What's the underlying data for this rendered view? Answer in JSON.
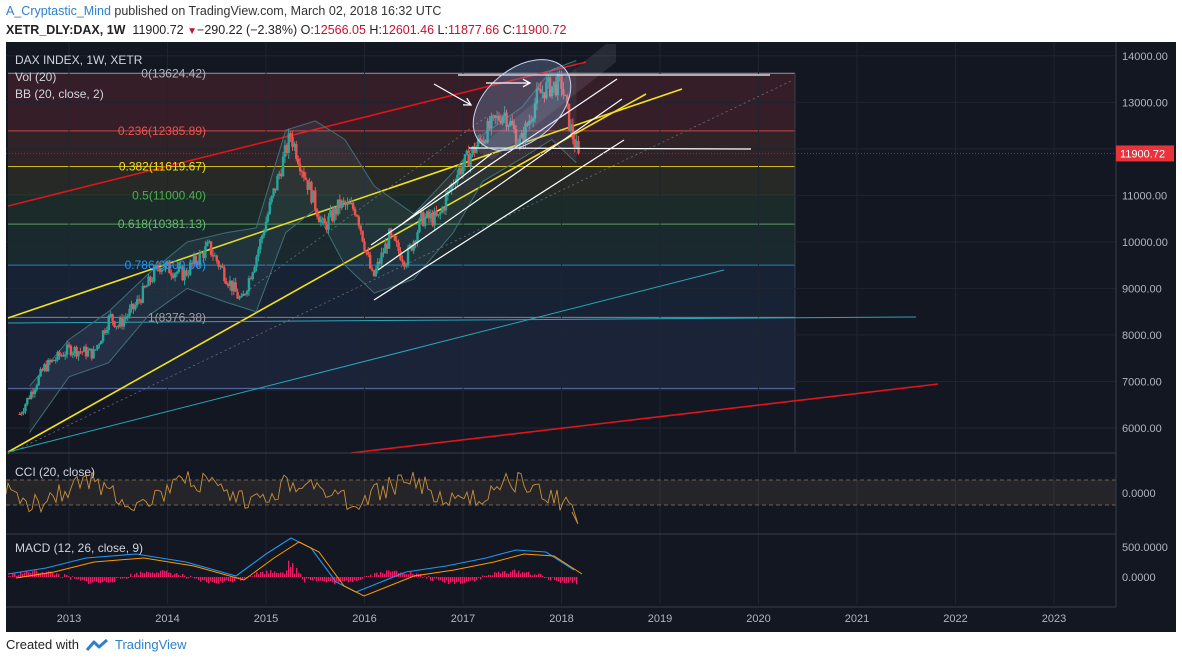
{
  "header": {
    "author": "A_Cryptastic_Mind",
    "published": "published on TradingView.com, March 02, 2018 16:32 UTC",
    "symbol": "XETR_DLY:DAX, 1W",
    "last": "11900.72",
    "change": "−290.22 (−2.38%)",
    "o_label": "O:",
    "o_value": "12566.05",
    "h_label": "H:",
    "h_value": "12601.46",
    "l_label": "L:",
    "l_value": "11877.66",
    "c_label": "C:",
    "c_value": "11900.72"
  },
  "footer": {
    "created_with": "Created with",
    "brand": "TradingView"
  },
  "colors": {
    "background": "#131722",
    "up": "#26a69a",
    "down": "#ef5350",
    "red_line": "#e0151a",
    "yellow_line": "#f2e21b",
    "cyan_line": "#27a7b5",
    "white_line": "#ffffff",
    "macd_hist": "#e91e63",
    "price_tag": "#e8333a"
  },
  "chart_data": [
    {
      "type": "candlestick",
      "title": "DAX INDEX, 1W, XETR",
      "legend": [
        "Vol (20)",
        "BB (20, close, 2)"
      ],
      "x_ticks": [
        "2013",
        "2014",
        "2015",
        "2016",
        "2017",
        "2018",
        "2019",
        "2020",
        "2021",
        "2022",
        "2023"
      ],
      "y_ticks": [
        "14000.00",
        "13000.00",
        "12000.00",
        "11000.00",
        "10000.00",
        "9000.00",
        "8000.00",
        "7000.00",
        "6000.00"
      ],
      "ylim": [
        5500,
        14200
      ],
      "last_price_label": "11900.72",
      "fib_levels": [
        {
          "label": "0(13624.42)",
          "value": 13624.42,
          "color": "#b2b5be"
        },
        {
          "label": "0.236(12385.89)",
          "value": 12385.89,
          "color": "#ef5350"
        },
        {
          "label": "0.382(11619.67)",
          "value": 11619.67,
          "color": "#f2e21b"
        },
        {
          "label": "0.5(11000.40)",
          "value": 11000.4,
          "color": "#4caf50"
        },
        {
          "label": "0.618(10381.13)",
          "value": 10381.13,
          "color": "#66bb6a"
        },
        {
          "label": "0.786(9500.00)",
          "value": 9500.0,
          "color": "#2196f3"
        },
        {
          "label": "1(8376.38)",
          "value": 8376.38,
          "color": "#9e9e9e"
        }
      ],
      "weekly_close": [
        {
          "date": "2012-07",
          "close": 6300
        },
        {
          "date": "2012-10",
          "close": 7300
        },
        {
          "date": "2013-01",
          "close": 7700
        },
        {
          "date": "2013-04",
          "close": 7600
        },
        {
          "date": "2013-06",
          "close": 8400
        },
        {
          "date": "2013-07",
          "close": 8200
        },
        {
          "date": "2013-09",
          "close": 8600
        },
        {
          "date": "2013-12",
          "close": 9500
        },
        {
          "date": "2014-03",
          "close": 9300
        },
        {
          "date": "2014-06",
          "close": 9900
        },
        {
          "date": "2014-08",
          "close": 9300
        },
        {
          "date": "2014-10",
          "close": 8700
        },
        {
          "date": "2014-12",
          "close": 9800
        },
        {
          "date": "2015-02",
          "close": 11100
        },
        {
          "date": "2015-04",
          "close": 12300
        },
        {
          "date": "2015-06",
          "close": 11300
        },
        {
          "date": "2015-08",
          "close": 10300
        },
        {
          "date": "2015-10",
          "close": 10800
        },
        {
          "date": "2015-12",
          "close": 10700
        },
        {
          "date": "2016-02",
          "close": 9200
        },
        {
          "date": "2016-04",
          "close": 10100
        },
        {
          "date": "2016-06",
          "close": 9600
        },
        {
          "date": "2016-08",
          "close": 10500
        },
        {
          "date": "2016-10",
          "close": 10500
        },
        {
          "date": "2016-12",
          "close": 11400
        },
        {
          "date": "2017-02",
          "close": 11900
        },
        {
          "date": "2017-04",
          "close": 12400
        },
        {
          "date": "2017-06",
          "close": 12800
        },
        {
          "date": "2017-08",
          "close": 12100
        },
        {
          "date": "2017-10",
          "close": 13100
        },
        {
          "date": "2017-11",
          "close": 13300
        },
        {
          "date": "2018-01",
          "close": 13400
        },
        {
          "date": "2018-02",
          "close": 12500
        },
        {
          "date": "2018-03",
          "close": 11900.72
        }
      ]
    },
    {
      "type": "line",
      "title": "CCI (20, close)",
      "y_ticks": [
        "0.0000"
      ]
    },
    {
      "type": "line",
      "title": "MACD (12, 26, close, 9)",
      "y_ticks": [
        "500.0000",
        "0.0000"
      ]
    }
  ]
}
